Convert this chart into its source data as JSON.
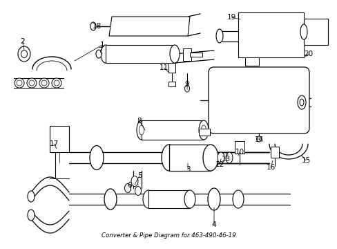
{
  "title": "Converter & Pipe Diagram for 463-490-46-19",
  "background_color": "#ffffff",
  "line_color": "#000000",
  "figsize": [
    4.89,
    3.6
  ],
  "dpi": 100
}
